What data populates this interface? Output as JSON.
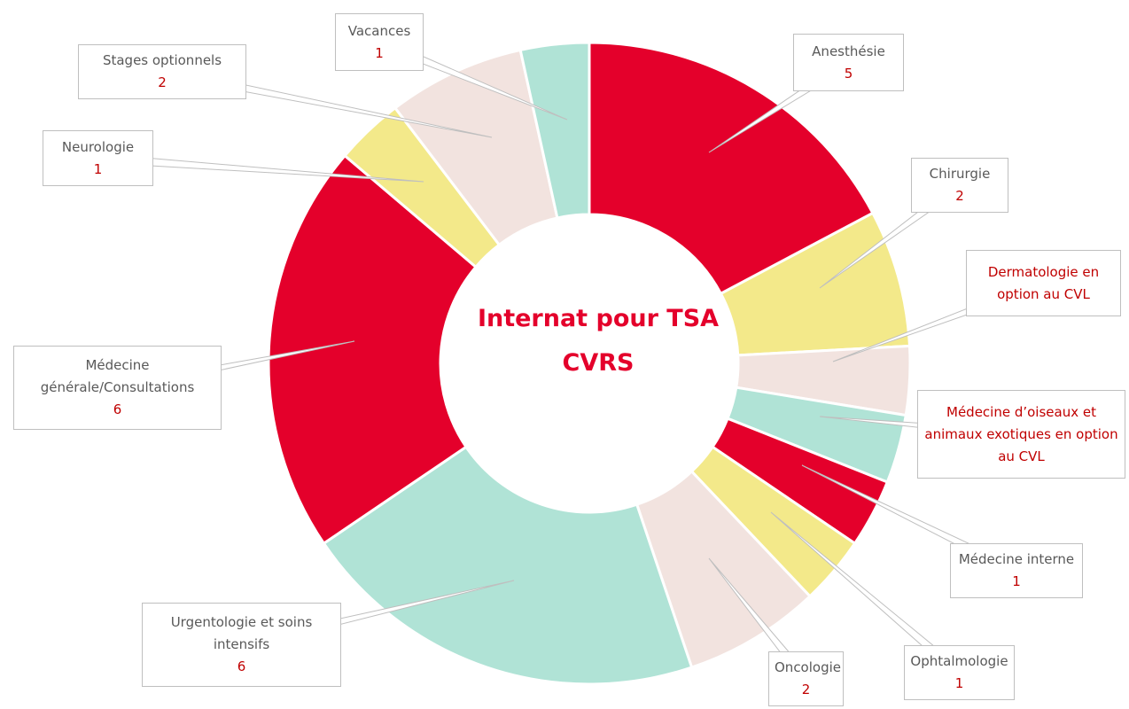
{
  "chart_data": {
    "type": "donut",
    "title": "Internat pour TSA CVRS",
    "categories": [
      "Anesthésie",
      "Chirurgie",
      "Dermatologie en option au CVL",
      "Médecine d’oiseaux et animaux exotiques en option au CVL",
      "Médecine interne",
      "Ophtalmologie",
      "Oncologie",
      "Urgentologie et soins intensifs",
      "Médecine générale/Consultations",
      "Neurologie",
      "Stages optionnels",
      "Vacances"
    ],
    "values": [
      5,
      2,
      1,
      1,
      1,
      1,
      2,
      6,
      6,
      1,
      2,
      1
    ],
    "colors": [
      "#e4002b",
      "#f3e98a",
      "#f2e3df",
      "#b0e3d6",
      "#e4002b",
      "#f3e98a",
      "#f2e3df",
      "#b0e3d6",
      "#e4002b",
      "#f3e98a",
      "#f2e3df",
      "#b0e3d6"
    ],
    "labels_show_value": [
      true,
      true,
      false,
      false,
      true,
      true,
      true,
      true,
      true,
      true,
      true,
      true
    ],
    "label_colors": [
      "#595959",
      "#595959",
      "#c00000",
      "#c00000",
      "#595959",
      "#595959",
      "#595959",
      "#595959",
      "#595959",
      "#595959",
      "#595959",
      "#595959"
    ]
  }
}
